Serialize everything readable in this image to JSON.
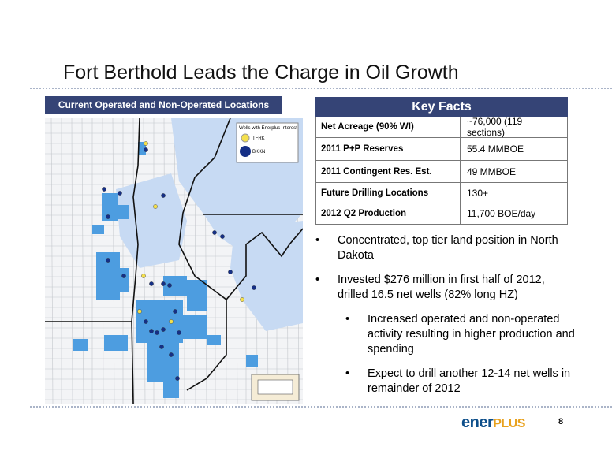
{
  "header": {
    "title": "Fort Berthold Leads the Charge in Oil Growth"
  },
  "map": {
    "title": "Current Operated and Non-Operated Locations",
    "legend": {
      "title": "Wells with Enerplus Interest",
      "items": [
        "TFRK",
        "BKKN"
      ]
    }
  },
  "key_facts": {
    "title": "Key Facts",
    "rows": [
      [
        "Net Acreage (90% WI)",
        "~76,000 (119 sections)"
      ],
      [
        "2011 P+P Reserves",
        "55.4 MMBOE"
      ],
      [
        "2011 Contingent Res. Est.",
        "49 MMBOE"
      ],
      [
        "Future Drilling Locations",
        "130+"
      ],
      [
        "2012 Q2 Production",
        "11,700 BOE/day"
      ]
    ]
  },
  "bullets": [
    {
      "text": "Concentrated, top tier land position in North Dakota",
      "level": 1
    },
    {
      "text": "Invested $276 million in first half of 2012, drilled 16.5 net wells (82% long HZ)",
      "level": 1
    },
    {
      "text": "Increased operated and non-operated activity resulting in higher production and spending",
      "level": 2
    },
    {
      "text": "Expect to drill another 12-14 net wells in remainder of 2012",
      "level": 2
    }
  ],
  "footer": {
    "logo": {
      "part1": "ener",
      "part2": "PLUS"
    },
    "page": "8"
  }
}
